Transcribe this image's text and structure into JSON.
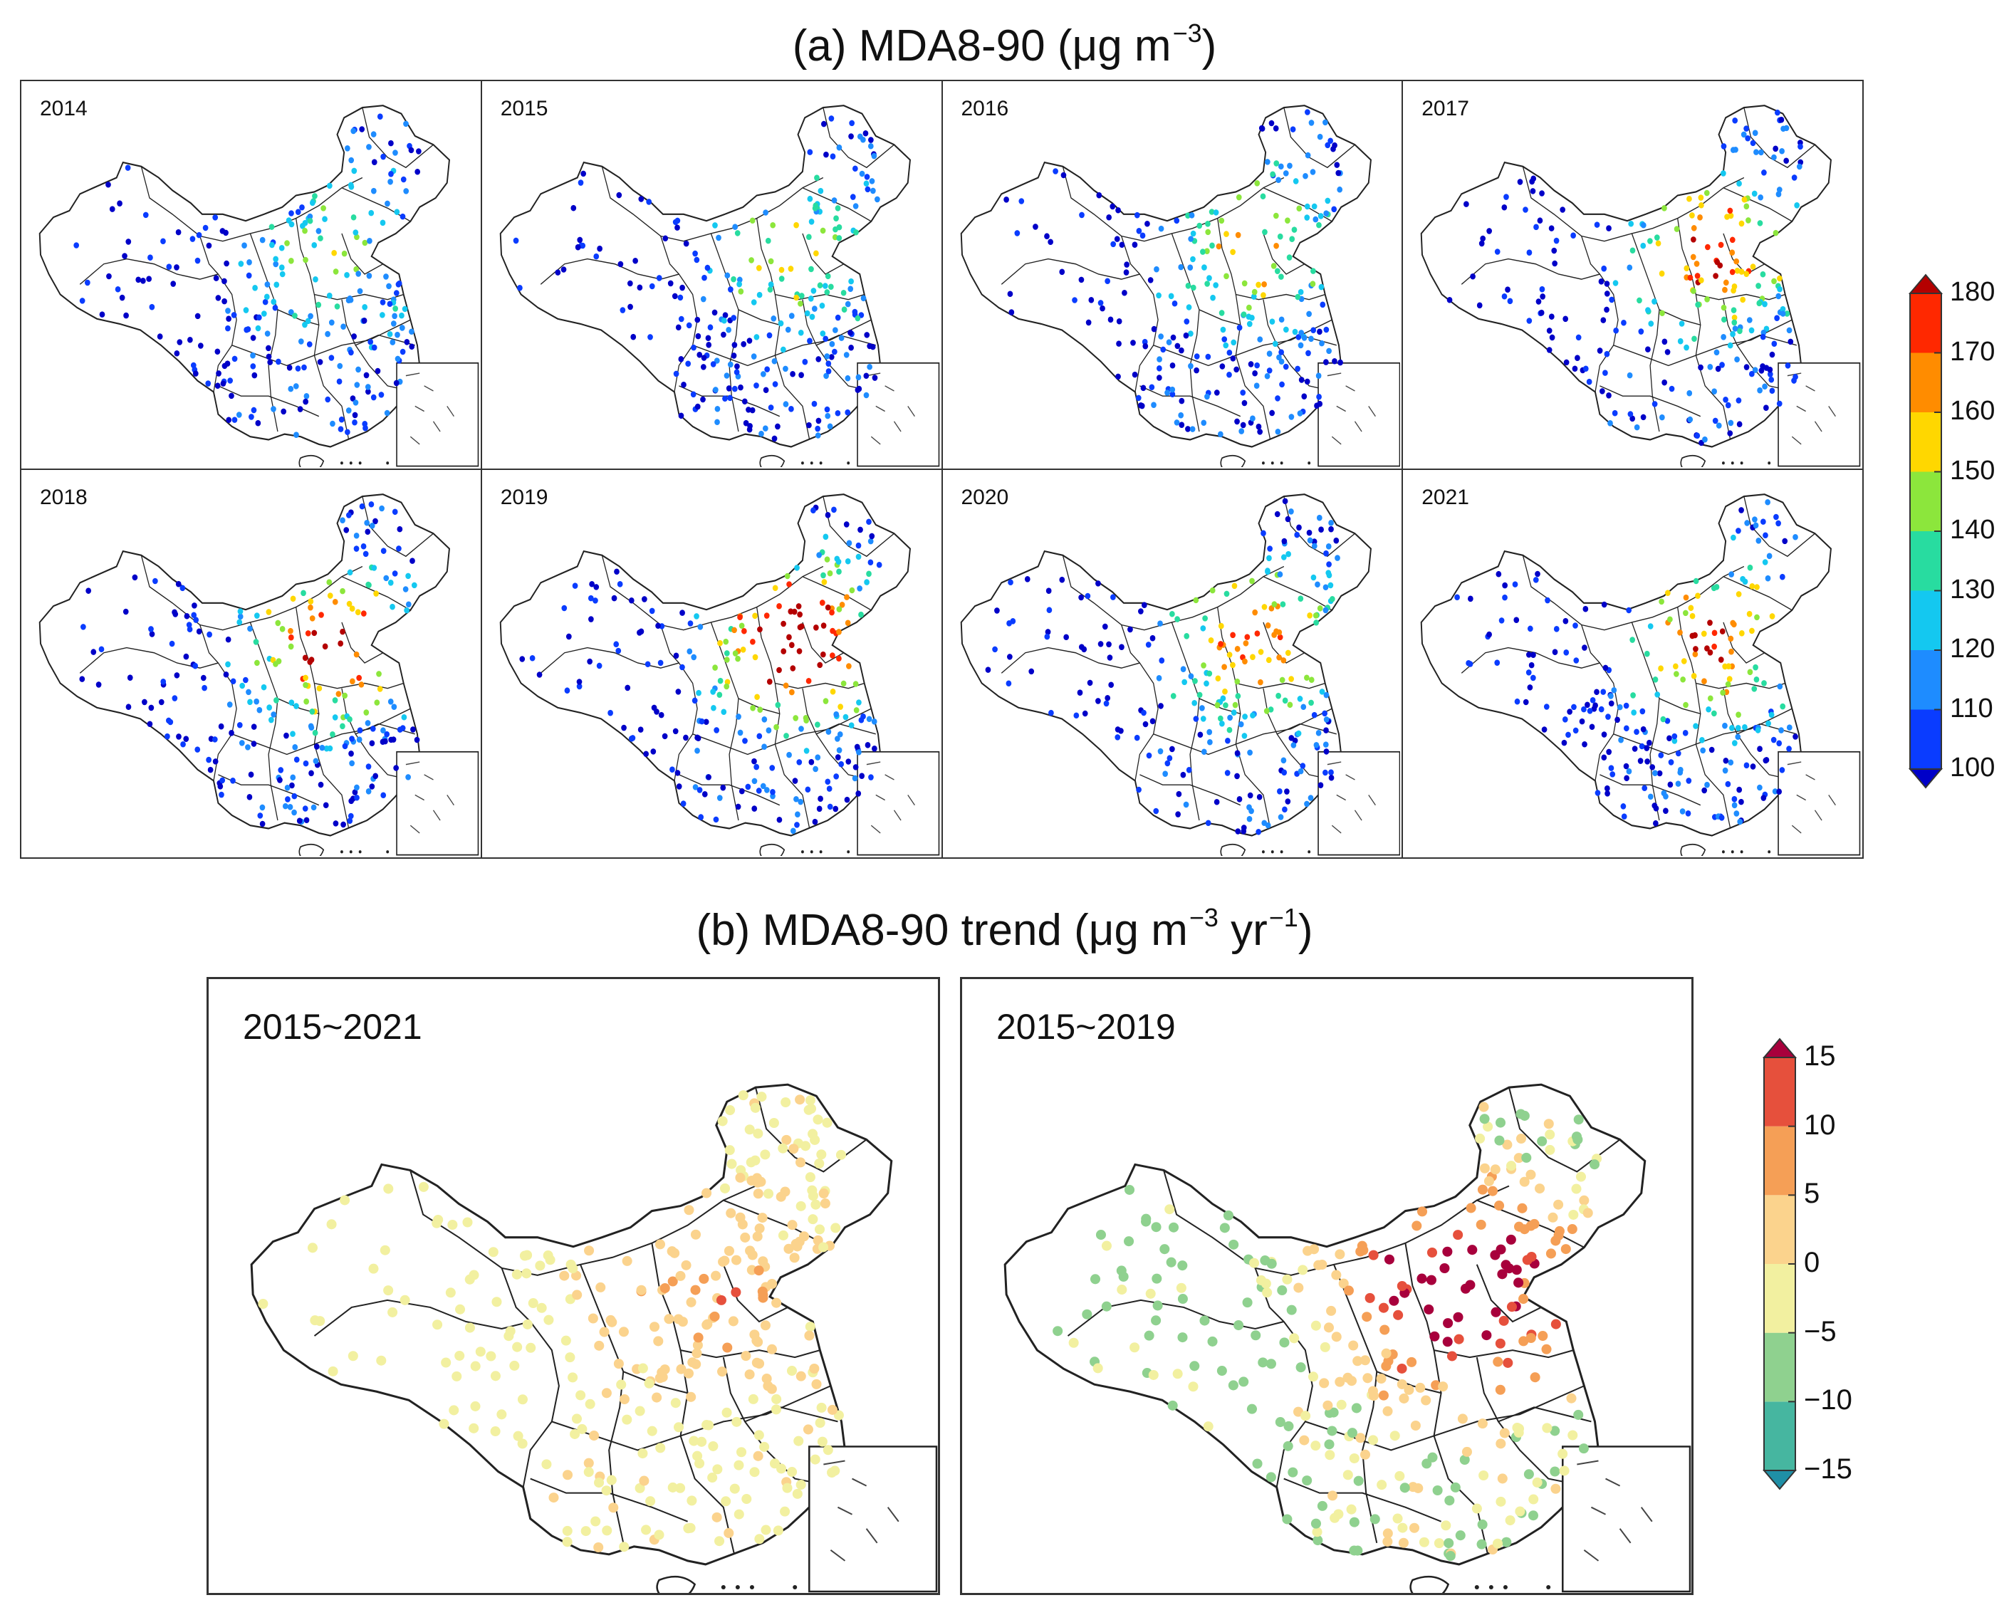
{
  "figure": {
    "title_a": {
      "prefix": "(a) MDA8-90 (μg m",
      "sup": "−3",
      "suffix": ")"
    },
    "title_b": {
      "prefix": "(b) MDA8-90 trend (μg m",
      "sup": "−3",
      "middle": " yr",
      "sup2": "−1",
      "suffix": ")"
    }
  },
  "panels_a": [
    {
      "year": "2014",
      "level": 0.25
    },
    {
      "year": "2015",
      "level": 0.35
    },
    {
      "year": "2016",
      "level": 0.4
    },
    {
      "year": "2017",
      "level": 0.55
    },
    {
      "year": "2018",
      "level": 0.6
    },
    {
      "year": "2019",
      "level": 0.7
    },
    {
      "year": "2020",
      "level": 0.5
    },
    {
      "year": "2021",
      "level": 0.52
    }
  ],
  "panels_b": [
    {
      "period": "2015~2021",
      "level": 0.35
    },
    {
      "period": "2015~2019",
      "level": 0.75
    }
  ],
  "colorbar_a": {
    "ticks": [
      "100",
      "110",
      "120",
      "130",
      "140",
      "150",
      "160",
      "170",
      "180"
    ],
    "colors": [
      "#0000c8",
      "#0a3cff",
      "#1e8cff",
      "#14c8f0",
      "#28dca0",
      "#8ce63c",
      "#ffd700",
      "#ff8c00",
      "#ff2800",
      "#b40000"
    ],
    "extend": "both"
  },
  "colorbar_b": {
    "ticks": [
      "15",
      "10",
      "5",
      "0",
      "−5",
      "−10",
      "−15"
    ],
    "colors": [
      "#1f8fa6",
      "#46b6a0",
      "#8fd18f",
      "#f2f0a0",
      "#fbd38d",
      "#f59f56",
      "#e6503c",
      "#a8003c"
    ],
    "extend": "both"
  }
}
